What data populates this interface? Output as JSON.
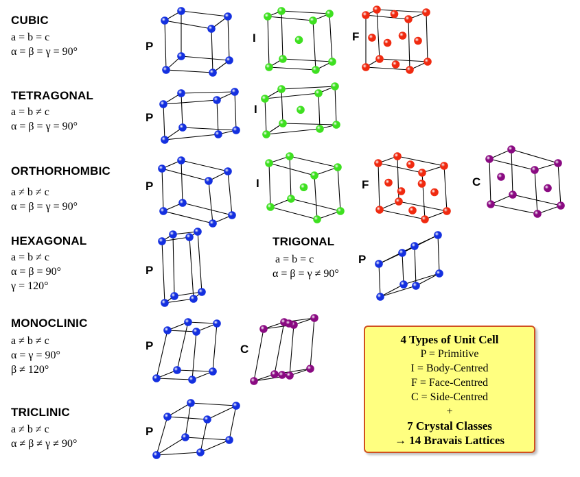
{
  "colors": {
    "blue": "#1430e0",
    "green": "#3ee020",
    "red": "#f02a10",
    "purple": "#8a0a82",
    "legend_bg": "#ffff80",
    "legend_border": "#d0501e"
  },
  "systems": [
    {
      "name": "CUBIC",
      "params": [
        "a = b = c",
        "α = β = γ = 90°"
      ]
    },
    {
      "name": "TETRAGONAL",
      "params": [
        "a = b ≠ c",
        "α = β = γ = 90°"
      ]
    },
    {
      "name": "ORTHORHOMBIC",
      "params": [
        "a ≠ b ≠ c",
        "α = β = γ = 90°"
      ]
    },
    {
      "name": "HEXAGONAL",
      "params": [
        "a = b ≠ c",
        "α = β = 90°",
        "γ = 120°"
      ]
    },
    {
      "name": "TRIGONAL",
      "params": [
        "a = b = c",
        "α = β = γ ≠ 90°"
      ]
    },
    {
      "name": "MONOCLINIC",
      "params": [
        "a ≠ b ≠ c",
        "α = γ = 90°",
        "β ≠ 120°"
      ]
    },
    {
      "name": "TRICLINIC",
      "params": [
        "a ≠ b ≠ c",
        "α ≠ β ≠ γ ≠ 90°"
      ]
    }
  ],
  "type_letters": {
    "P": "P",
    "I": "I",
    "F": "F",
    "C": "C"
  },
  "legend": {
    "title": "4 Types of Unit Cell",
    "p": "P = Primitive",
    "i": "I = Body-Centred",
    "f": "F = Face-Centred",
    "c": "C = Side-Centred",
    "plus": "+",
    "classes": "7 Crystal Classes",
    "lattices": "→ 14 Bravais Lattices"
  }
}
